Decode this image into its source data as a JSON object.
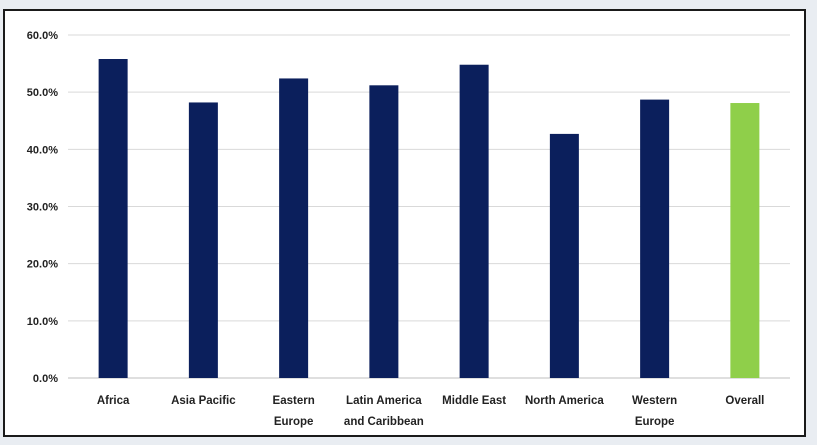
{
  "chart_data": {
    "type": "bar",
    "title": "",
    "xlabel": "",
    "ylabel": "",
    "ylim": [
      0,
      60
    ],
    "y_ticks": [
      0,
      10,
      20,
      30,
      40,
      50,
      60
    ],
    "y_tick_labels": [
      "0.0%",
      "10.0%",
      "20.0%",
      "30.0%",
      "40.0%",
      "50.0%",
      "60.0%"
    ],
    "grid": true,
    "legend": "none",
    "categories": [
      [
        "Africa"
      ],
      [
        "Asia Pacific"
      ],
      [
        "Eastern",
        "Europe"
      ],
      [
        "Latin America",
        "and Caribbean"
      ],
      [
        "Middle East"
      ],
      [
        "North America"
      ],
      [
        "Western",
        "Europe"
      ],
      [
        "Overall"
      ]
    ],
    "values": [
      55.8,
      48.2,
      52.4,
      51.2,
      54.8,
      42.7,
      48.7,
      48.1
    ],
    "colors": [
      "#0b1f5c",
      "#0b1f5c",
      "#0b1f5c",
      "#0b1f5c",
      "#0b1f5c",
      "#0b1f5c",
      "#0b1f5c",
      "#8fcf4a"
    ]
  }
}
